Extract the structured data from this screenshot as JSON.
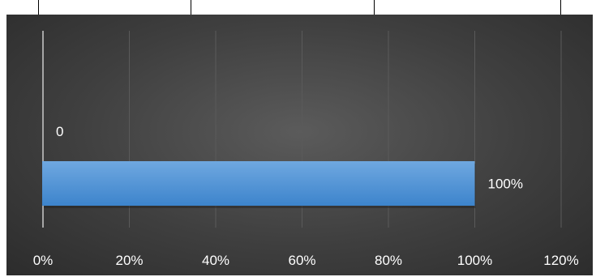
{
  "chart_data": {
    "type": "bar",
    "orientation": "horizontal",
    "categories": [
      ""
    ],
    "series": [
      {
        "values": [
          1.0
        ]
      }
    ],
    "data_labels": [
      "100%"
    ],
    "annotations": [
      "0"
    ],
    "x_ticks": [
      "0%",
      "20%",
      "40%",
      "60%",
      "80%",
      "100%",
      "120%"
    ],
    "xlim": [
      0,
      1.2
    ],
    "grid": "vertical",
    "legend": "none",
    "colors": {
      "background": "#3f3f3f",
      "bar": "#5b9bd5",
      "text": "#ffffff",
      "grid": "#5a5a5a"
    }
  }
}
